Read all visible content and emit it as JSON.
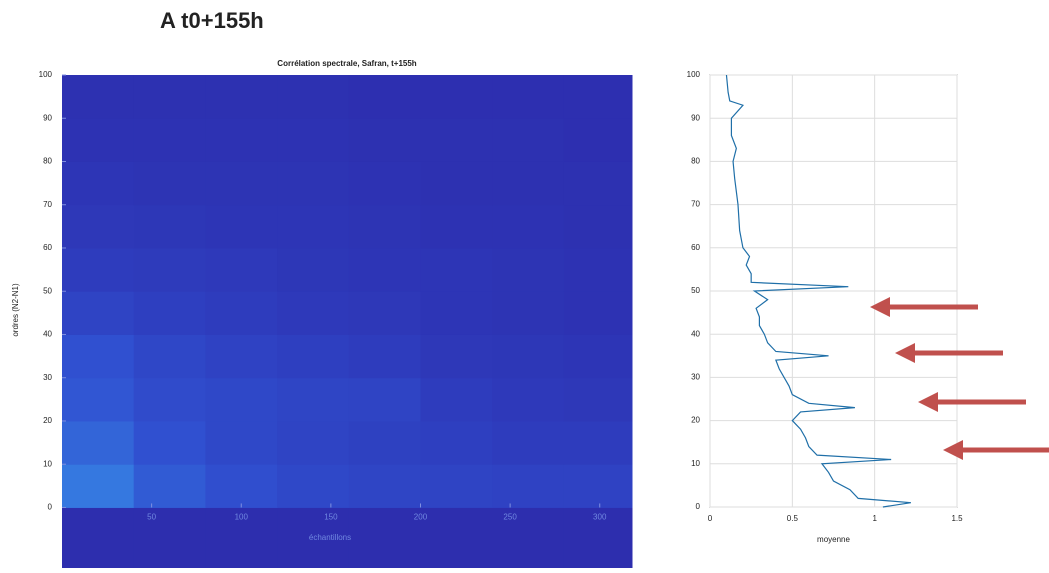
{
  "panel_label": "A t0+155h",
  "chart_data": [
    {
      "type": "heatmap",
      "title": "Corrélation spectrale, Safran, t+155h",
      "xlabel": "échantillons",
      "ylabel": "ordres (N2-N1)",
      "xlim": [
        0,
        318
      ],
      "ylim": [
        -14,
        100
      ],
      "xticks": [
        50,
        100,
        150,
        200,
        250,
        300
      ],
      "yticks": [
        0,
        10,
        20,
        30,
        40,
        50,
        60,
        70,
        80,
        90,
        100
      ],
      "x_bins": [
        0,
        40,
        80,
        120,
        160,
        200,
        240,
        280,
        318
      ],
      "y_bins": [
        -14,
        0,
        10,
        20,
        30,
        40,
        50,
        60,
        70,
        80,
        90,
        100
      ],
      "zlim": [
        0,
        1
      ],
      "colormap": [
        "#2b1fa0",
        "#3050d0",
        "#3aa0f0",
        "#60e0f8"
      ],
      "values": [
        [
          0.1,
          0.1,
          0.1,
          0.1,
          0.1,
          0.1,
          0.1,
          0.1
        ],
        [
          0.5,
          0.38,
          0.32,
          0.28,
          0.26,
          0.25,
          0.24,
          0.24
        ],
        [
          0.42,
          0.33,
          0.28,
          0.25,
          0.23,
          0.22,
          0.2,
          0.2
        ],
        [
          0.36,
          0.3,
          0.28,
          0.26,
          0.25,
          0.2,
          0.18,
          0.17
        ],
        [
          0.33,
          0.27,
          0.24,
          0.22,
          0.2,
          0.17,
          0.16,
          0.15
        ],
        [
          0.25,
          0.22,
          0.2,
          0.18,
          0.17,
          0.15,
          0.14,
          0.13
        ],
        [
          0.2,
          0.19,
          0.18,
          0.16,
          0.15,
          0.15,
          0.14,
          0.13
        ],
        [
          0.17,
          0.16,
          0.15,
          0.15,
          0.14,
          0.13,
          0.13,
          0.12
        ],
        [
          0.15,
          0.14,
          0.14,
          0.14,
          0.13,
          0.12,
          0.12,
          0.12
        ],
        [
          0.13,
          0.13,
          0.13,
          0.13,
          0.12,
          0.12,
          0.12,
          0.11
        ],
        [
          0.12,
          0.12,
          0.12,
          0.12,
          0.11,
          0.11,
          0.11,
          0.11
        ]
      ]
    },
    {
      "type": "line",
      "orientation": "horizontal",
      "xlabel": "moyenne",
      "xlim": [
        0,
        1.5
      ],
      "ylim": [
        0,
        100
      ],
      "xticks": [
        0,
        0.5,
        1,
        1.5
      ],
      "yticks": [
        0,
        10,
        20,
        30,
        40,
        50,
        60,
        70,
        80,
        90,
        100
      ],
      "grid": true,
      "color": "#1f6fa8",
      "y": [
        0,
        1,
        2,
        4,
        6,
        8,
        10,
        11,
        12,
        14,
        16,
        18,
        20,
        22,
        23,
        24,
        26,
        28,
        30,
        32,
        34,
        35,
        36,
        38,
        40,
        42,
        44,
        46,
        48,
        50,
        51,
        52,
        54,
        56,
        58,
        60,
        64,
        70,
        76,
        80,
        83,
        86,
        90,
        93,
        94,
        96,
        100
      ],
      "values": [
        1.05,
        1.22,
        0.9,
        0.85,
        0.75,
        0.72,
        0.68,
        1.1,
        0.65,
        0.6,
        0.58,
        0.55,
        0.5,
        0.55,
        0.88,
        0.6,
        0.5,
        0.48,
        0.45,
        0.42,
        0.4,
        0.72,
        0.4,
        0.35,
        0.33,
        0.3,
        0.3,
        0.28,
        0.35,
        0.27,
        0.84,
        0.25,
        0.25,
        0.22,
        0.24,
        0.2,
        0.18,
        0.17,
        0.15,
        0.14,
        0.16,
        0.13,
        0.13,
        0.2,
        0.12,
        0.11,
        0.1
      ]
    }
  ]
}
